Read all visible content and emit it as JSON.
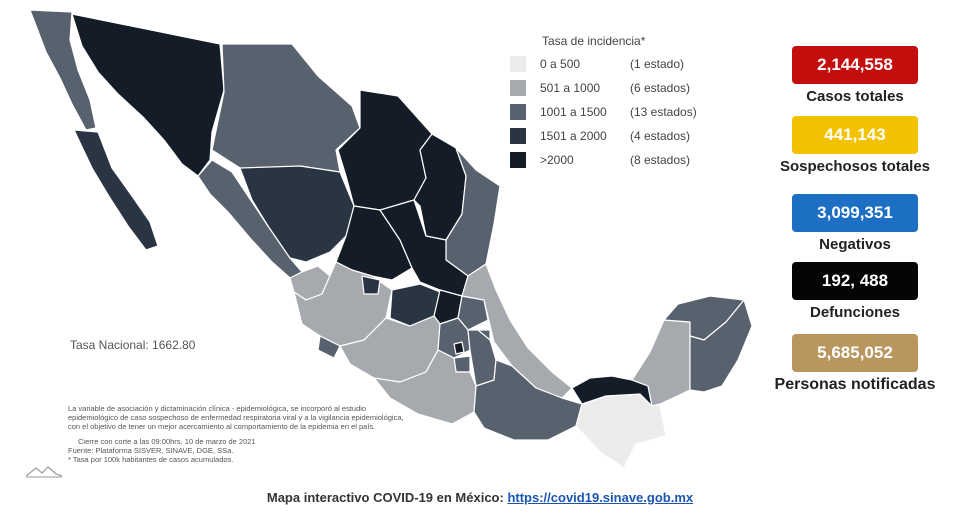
{
  "legend": {
    "title": "Tasa de incidencia*",
    "items": [
      {
        "range": "0 a   500",
        "states": "(1 estado)",
        "color": "#ececec"
      },
      {
        "range": "501 a  1000",
        "states": "(6 estados)",
        "color": "#a6a9ae"
      },
      {
        "range": "1001 a   1500",
        "states": "(13 estados)",
        "color": "#58626e"
      },
      {
        "range": "1501 a   2000",
        "states": "(4 estados)",
        "color": "#2a3544"
      },
      {
        "range": ">2000",
        "states": "(8 estados)",
        "color": "#141c28"
      }
    ]
  },
  "stats": [
    {
      "value": "2,144,558",
      "label": "Casos totales",
      "color": "#c40d0d"
    },
    {
      "value": "441,143",
      "label": "Sospechosos totales",
      "color": "#f2c200"
    },
    {
      "value": "3,099,351",
      "label": "Negativos",
      "color": "#1c6fc2"
    },
    {
      "value": "192, 488",
      "label": "Defunciones",
      "color": "#050505"
    },
    {
      "value": "5,685,052",
      "label": "Personas notificadas",
      "color": "#b8965e"
    }
  ],
  "tasa_nacional": "Tasa Nacional: 1662.80",
  "notes": {
    "line1": "La variable de asociación y dictaminación clínica - epidemiológica, se incorporó al estudio",
    "line2": "epidemiológico de caso sospechoso de enfermedad respiratoria viral y a la vigilancia epidemiológica,",
    "line3": "con el objetivo de tener un mejor acercamiento al comportamiento de la epidemia en el país.",
    "line4": "Cierre con corte a las 09:00hrs, 10 de marzo de 2021",
    "line5": "Fuente: Plataforma SISVER, SINAVE, DGE, SSa.",
    "line6": "* Tasa por 100k habitantes de casos acumulados."
  },
  "footer": {
    "text": "Mapa interactivo COVID-19 en México: ",
    "link": "https://covid19.sinave.gob.mx"
  }
}
